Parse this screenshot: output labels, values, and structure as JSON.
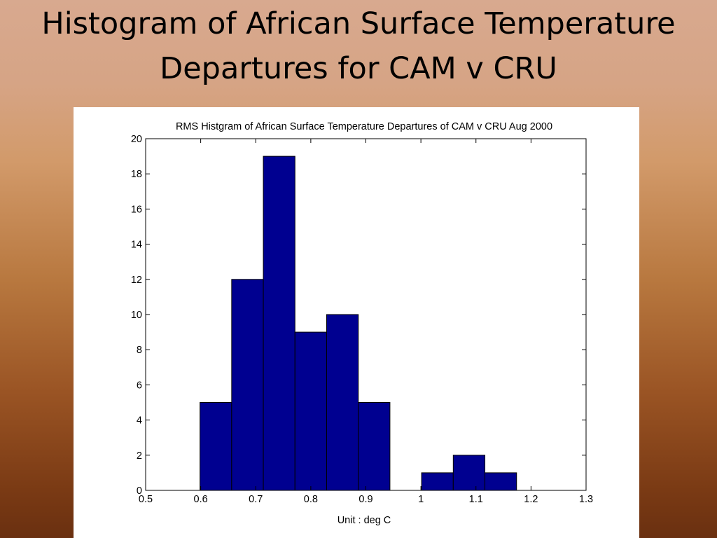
{
  "slide": {
    "title_line1": "Histogram of African Surface Temperature",
    "title_line2": "Departures for CAM v CRU"
  },
  "chart_data": {
    "type": "bar",
    "title": "RMS Histgram of African Surface Temperature Departures of CAM v CRU   Aug 2000",
    "xlabel": "Unit : deg C",
    "ylabel": "",
    "xlim": [
      0.5,
      1.3
    ],
    "ylim": [
      0,
      20
    ],
    "xticks": [
      "0.5",
      "0.6",
      "0.7",
      "0.8",
      "0.9",
      "1",
      "1.1",
      "1.2",
      "1.3"
    ],
    "yticks": [
      "0",
      "2",
      "4",
      "6",
      "8",
      "10",
      "12",
      "14",
      "16",
      "18",
      "20"
    ],
    "bin_width": 0.0575,
    "bins": [
      {
        "center": 0.6275,
        "value": 5
      },
      {
        "center": 0.685,
        "value": 12
      },
      {
        "center": 0.7425,
        "value": 19
      },
      {
        "center": 0.8,
        "value": 9
      },
      {
        "center": 0.8575,
        "value": 10
      },
      {
        "center": 0.915,
        "value": 5
      },
      {
        "center": 0.9725,
        "value": 0
      },
      {
        "center": 1.03,
        "value": 1
      },
      {
        "center": 1.0875,
        "value": 2
      },
      {
        "center": 1.145,
        "value": 1
      }
    ],
    "bar_color": "#000090",
    "grid": false
  }
}
